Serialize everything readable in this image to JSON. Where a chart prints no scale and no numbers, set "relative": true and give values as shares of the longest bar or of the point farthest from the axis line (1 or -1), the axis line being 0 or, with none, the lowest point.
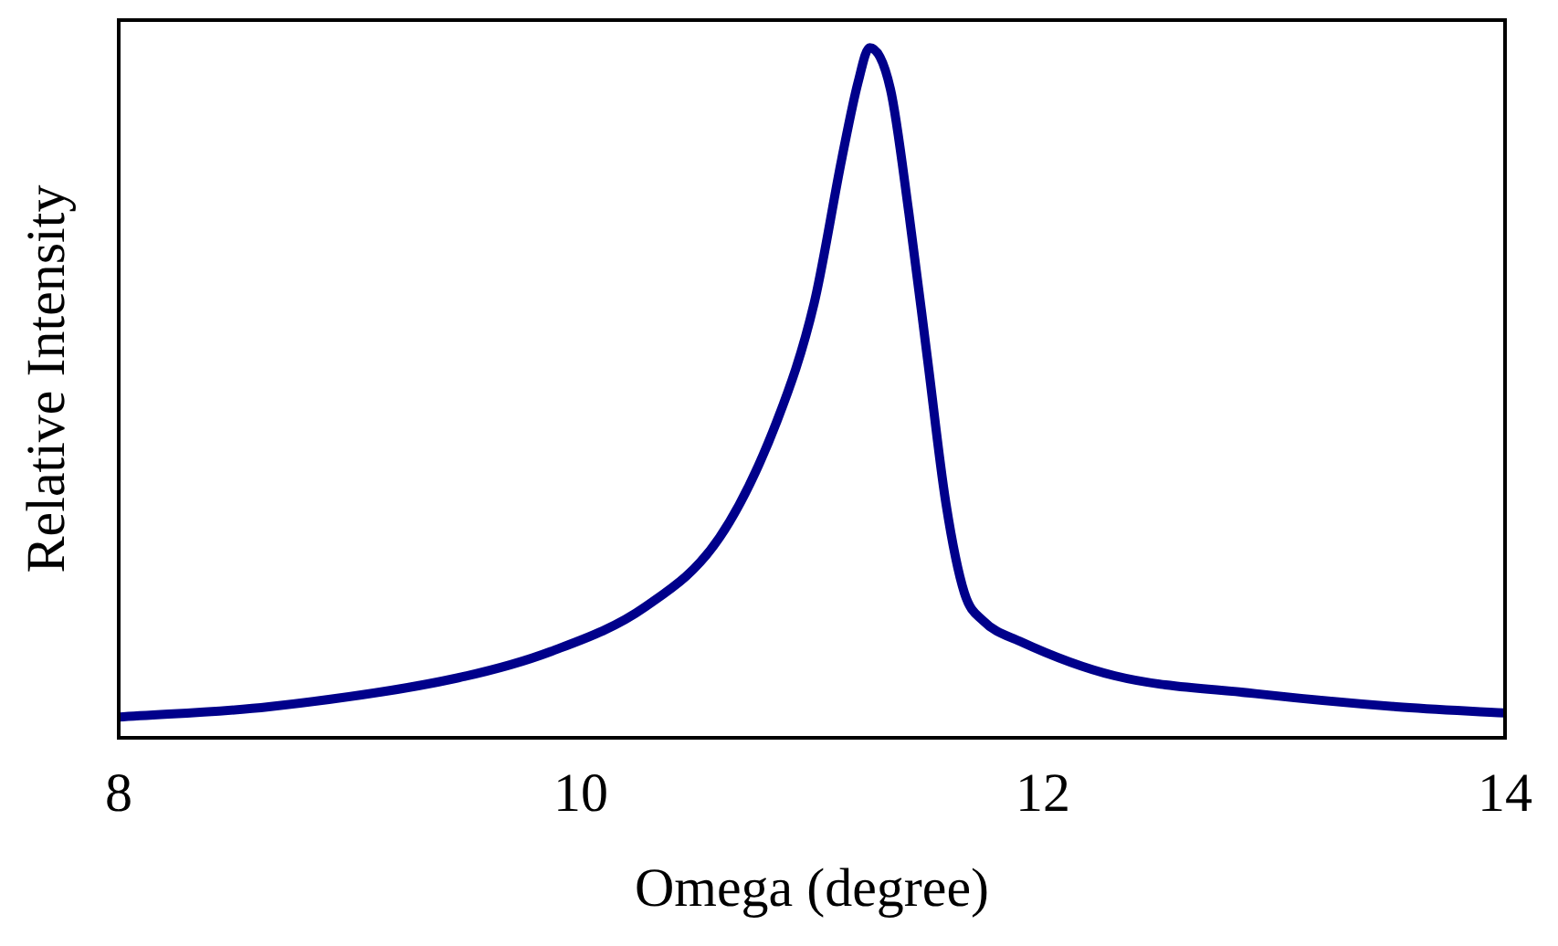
{
  "chart_data": {
    "type": "line",
    "xlabel": "Omega (degree)",
    "ylabel": "Relative Intensity",
    "relative": true,
    "grid": false,
    "legend": false,
    "marker": "none",
    "line_style": "solid",
    "xlim": [
      8,
      14
    ],
    "xticks": [
      8,
      10,
      12,
      14
    ],
    "series": [
      {
        "color": "#00008b",
        "x": [
          8,
          8.65,
          9.47,
          9.87,
          10.28,
          10.6,
          10.85,
          11.01,
          11.13,
          11.2,
          11.25,
          11.34,
          11.42,
          11.5,
          11.58,
          11.66,
          11.74,
          11.9,
          12.31,
          12.92,
          13.53,
          14
        ],
        "values": [
          0.03,
          0.045,
          0.087,
          0.125,
          0.19,
          0.29,
          0.46,
          0.63,
          0.84,
          0.95,
          1,
          0.94,
          0.76,
          0.55,
          0.34,
          0.21,
          0.17,
          0.14,
          0.09,
          0.064,
          0.045,
          0.036
        ]
      }
    ]
  }
}
